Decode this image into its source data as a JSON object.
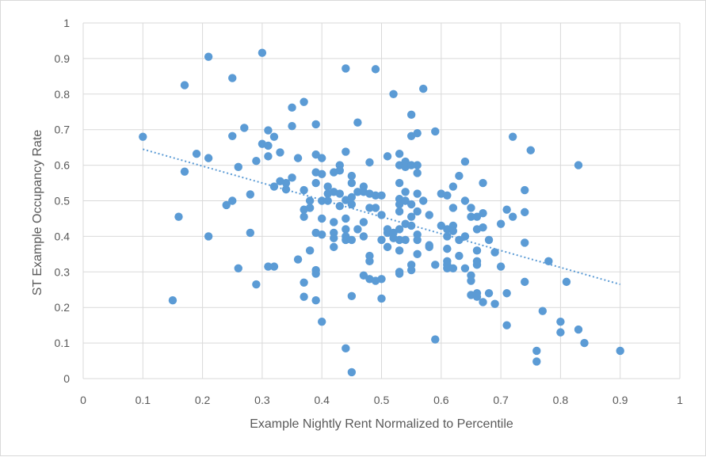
{
  "chart_data": {
    "type": "scatter",
    "title": "",
    "xlabel": "Example Nightly Rent Normalized to Percentile",
    "ylabel": "ST Example Occupancy Rate",
    "xlim": [
      0,
      1
    ],
    "ylim": [
      0,
      1
    ],
    "x_ticks": [
      "0",
      "0.1",
      "0.2",
      "0.3",
      "0.4",
      "0.5",
      "0.6",
      "0.7",
      "0.8",
      "0.9",
      "1"
    ],
    "y_ticks": [
      "0",
      "0.1",
      "0.2",
      "0.3",
      "0.4",
      "0.5",
      "0.6",
      "0.7",
      "0.8",
      "0.9",
      "1"
    ],
    "grid": "vertical and horizontal",
    "legend": "none",
    "marker_color": "#5b9bd5",
    "trendline": {
      "type": "linear",
      "style": "dotted",
      "color": "#5b9bd5",
      "from": [
        0.1,
        0.645
      ],
      "to": [
        0.9,
        0.265
      ]
    },
    "points": [
      [
        0.1,
        0.68
      ],
      [
        0.15,
        0.22
      ],
      [
        0.16,
        0.455
      ],
      [
        0.17,
        0.825
      ],
      [
        0.17,
        0.582
      ],
      [
        0.19,
        0.632
      ],
      [
        0.21,
        0.905
      ],
      [
        0.21,
        0.62
      ],
      [
        0.21,
        0.4
      ],
      [
        0.24,
        0.488
      ],
      [
        0.25,
        0.845
      ],
      [
        0.25,
        0.682
      ],
      [
        0.25,
        0.5
      ],
      [
        0.26,
        0.595
      ],
      [
        0.26,
        0.31
      ],
      [
        0.27,
        0.705
      ],
      [
        0.28,
        0.518
      ],
      [
        0.28,
        0.41
      ],
      [
        0.29,
        0.612
      ],
      [
        0.29,
        0.265
      ],
      [
        0.3,
        0.916
      ],
      [
        0.3,
        0.66
      ],
      [
        0.31,
        0.698
      ],
      [
        0.31,
        0.655
      ],
      [
        0.31,
        0.625
      ],
      [
        0.31,
        0.315
      ],
      [
        0.32,
        0.68
      ],
      [
        0.32,
        0.54
      ],
      [
        0.32,
        0.315
      ],
      [
        0.33,
        0.636
      ],
      [
        0.33,
        0.555
      ],
      [
        0.34,
        0.55
      ],
      [
        0.34,
        0.532
      ],
      [
        0.35,
        0.762
      ],
      [
        0.35,
        0.71
      ],
      [
        0.35,
        0.565
      ],
      [
        0.36,
        0.62
      ],
      [
        0.36,
        0.335
      ],
      [
        0.37,
        0.778
      ],
      [
        0.37,
        0.53
      ],
      [
        0.37,
        0.475
      ],
      [
        0.37,
        0.455
      ],
      [
        0.37,
        0.27
      ],
      [
        0.37,
        0.23
      ],
      [
        0.38,
        0.5
      ],
      [
        0.38,
        0.48
      ],
      [
        0.38,
        0.36
      ],
      [
        0.39,
        0.715
      ],
      [
        0.39,
        0.63
      ],
      [
        0.39,
        0.58
      ],
      [
        0.39,
        0.55
      ],
      [
        0.39,
        0.41
      ],
      [
        0.39,
        0.305
      ],
      [
        0.39,
        0.295
      ],
      [
        0.39,
        0.22
      ],
      [
        0.4,
        0.62
      ],
      [
        0.4,
        0.575
      ],
      [
        0.4,
        0.5
      ],
      [
        0.4,
        0.45
      ],
      [
        0.4,
        0.405
      ],
      [
        0.4,
        0.16
      ],
      [
        0.41,
        0.54
      ],
      [
        0.41,
        0.52
      ],
      [
        0.41,
        0.5
      ],
      [
        0.42,
        0.58
      ],
      [
        0.42,
        0.525
      ],
      [
        0.42,
        0.44
      ],
      [
        0.42,
        0.41
      ],
      [
        0.42,
        0.395
      ],
      [
        0.42,
        0.37
      ],
      [
        0.43,
        0.6
      ],
      [
        0.43,
        0.585
      ],
      [
        0.43,
        0.52
      ],
      [
        0.43,
        0.485
      ],
      [
        0.44,
        0.872
      ],
      [
        0.44,
        0.638
      ],
      [
        0.44,
        0.502
      ],
      [
        0.44,
        0.45
      ],
      [
        0.44,
        0.42
      ],
      [
        0.44,
        0.4
      ],
      [
        0.44,
        0.39
      ],
      [
        0.44,
        0.085
      ],
      [
        0.45,
        0.57
      ],
      [
        0.45,
        0.55
      ],
      [
        0.45,
        0.51
      ],
      [
        0.45,
        0.49
      ],
      [
        0.45,
        0.39
      ],
      [
        0.45,
        0.232
      ],
      [
        0.45,
        0.018
      ],
      [
        0.46,
        0.72
      ],
      [
        0.46,
        0.525
      ],
      [
        0.46,
        0.42
      ],
      [
        0.47,
        0.54
      ],
      [
        0.47,
        0.525
      ],
      [
        0.47,
        0.44
      ],
      [
        0.47,
        0.4
      ],
      [
        0.47,
        0.29
      ],
      [
        0.48,
        0.608
      ],
      [
        0.48,
        0.52
      ],
      [
        0.48,
        0.48
      ],
      [
        0.48,
        0.345
      ],
      [
        0.48,
        0.33
      ],
      [
        0.48,
        0.28
      ],
      [
        0.49,
        0.87
      ],
      [
        0.49,
        0.515
      ],
      [
        0.49,
        0.48
      ],
      [
        0.49,
        0.275
      ],
      [
        0.5,
        0.515
      ],
      [
        0.5,
        0.46
      ],
      [
        0.5,
        0.39
      ],
      [
        0.5,
        0.28
      ],
      [
        0.5,
        0.225
      ],
      [
        0.51,
        0.625
      ],
      [
        0.51,
        0.42
      ],
      [
        0.51,
        0.41
      ],
      [
        0.51,
        0.37
      ],
      [
        0.52,
        0.8
      ],
      [
        0.52,
        0.41
      ],
      [
        0.52,
        0.395
      ],
      [
        0.53,
        0.632
      ],
      [
        0.53,
        0.6
      ],
      [
        0.53,
        0.55
      ],
      [
        0.53,
        0.505
      ],
      [
        0.53,
        0.49
      ],
      [
        0.53,
        0.47
      ],
      [
        0.53,
        0.42
      ],
      [
        0.53,
        0.39
      ],
      [
        0.53,
        0.36
      ],
      [
        0.53,
        0.3
      ],
      [
        0.53,
        0.295
      ],
      [
        0.54,
        0.61
      ],
      [
        0.54,
        0.595
      ],
      [
        0.54,
        0.525
      ],
      [
        0.54,
        0.5
      ],
      [
        0.54,
        0.435
      ],
      [
        0.54,
        0.39
      ],
      [
        0.55,
        0.742
      ],
      [
        0.55,
        0.682
      ],
      [
        0.55,
        0.6
      ],
      [
        0.55,
        0.49
      ],
      [
        0.55,
        0.455
      ],
      [
        0.55,
        0.43
      ],
      [
        0.55,
        0.32
      ],
      [
        0.55,
        0.305
      ],
      [
        0.56,
        0.69
      ],
      [
        0.56,
        0.6
      ],
      [
        0.56,
        0.578
      ],
      [
        0.56,
        0.52
      ],
      [
        0.56,
        0.47
      ],
      [
        0.56,
        0.405
      ],
      [
        0.56,
        0.39
      ],
      [
        0.56,
        0.35
      ],
      [
        0.57,
        0.815
      ],
      [
        0.57,
        0.5
      ],
      [
        0.58,
        0.46
      ],
      [
        0.58,
        0.375
      ],
      [
        0.58,
        0.37
      ],
      [
        0.59,
        0.695
      ],
      [
        0.59,
        0.32
      ],
      [
        0.59,
        0.11
      ],
      [
        0.6,
        0.52
      ],
      [
        0.6,
        0.43
      ],
      [
        0.61,
        0.515
      ],
      [
        0.61,
        0.42
      ],
      [
        0.61,
        0.4
      ],
      [
        0.61,
        0.365
      ],
      [
        0.61,
        0.33
      ],
      [
        0.61,
        0.32
      ],
      [
        0.61,
        0.31
      ],
      [
        0.62,
        0.54
      ],
      [
        0.62,
        0.48
      ],
      [
        0.62,
        0.43
      ],
      [
        0.62,
        0.415
      ],
      [
        0.62,
        0.31
      ],
      [
        0.63,
        0.57
      ],
      [
        0.63,
        0.39
      ],
      [
        0.63,
        0.345
      ],
      [
        0.64,
        0.61
      ],
      [
        0.64,
        0.5
      ],
      [
        0.64,
        0.4
      ],
      [
        0.64,
        0.31
      ],
      [
        0.65,
        0.48
      ],
      [
        0.65,
        0.455
      ],
      [
        0.65,
        0.29
      ],
      [
        0.65,
        0.275
      ],
      [
        0.65,
        0.235
      ],
      [
        0.66,
        0.455
      ],
      [
        0.66,
        0.42
      ],
      [
        0.66,
        0.36
      ],
      [
        0.66,
        0.33
      ],
      [
        0.66,
        0.32
      ],
      [
        0.66,
        0.24
      ],
      [
        0.66,
        0.23
      ],
      [
        0.67,
        0.55
      ],
      [
        0.67,
        0.465
      ],
      [
        0.67,
        0.425
      ],
      [
        0.67,
        0.215
      ],
      [
        0.68,
        0.39
      ],
      [
        0.68,
        0.24
      ],
      [
        0.69,
        0.355
      ],
      [
        0.69,
        0.21
      ],
      [
        0.7,
        0.435
      ],
      [
        0.7,
        0.315
      ],
      [
        0.71,
        0.475
      ],
      [
        0.71,
        0.24
      ],
      [
        0.71,
        0.15
      ],
      [
        0.72,
        0.68
      ],
      [
        0.72,
        0.455
      ],
      [
        0.74,
        0.53
      ],
      [
        0.74,
        0.468
      ],
      [
        0.74,
        0.382
      ],
      [
        0.74,
        0.272
      ],
      [
        0.75,
        0.642
      ],
      [
        0.77,
        0.19
      ],
      [
        0.78,
        0.33
      ],
      [
        0.8,
        0.16
      ],
      [
        0.8,
        0.13
      ],
      [
        0.81,
        0.272
      ],
      [
        0.83,
        0.6
      ],
      [
        0.83,
        0.138
      ],
      [
        0.84,
        0.1
      ],
      [
        0.76,
        0.078
      ],
      [
        0.76,
        0.048
      ],
      [
        0.9,
        0.078
      ]
    ]
  }
}
